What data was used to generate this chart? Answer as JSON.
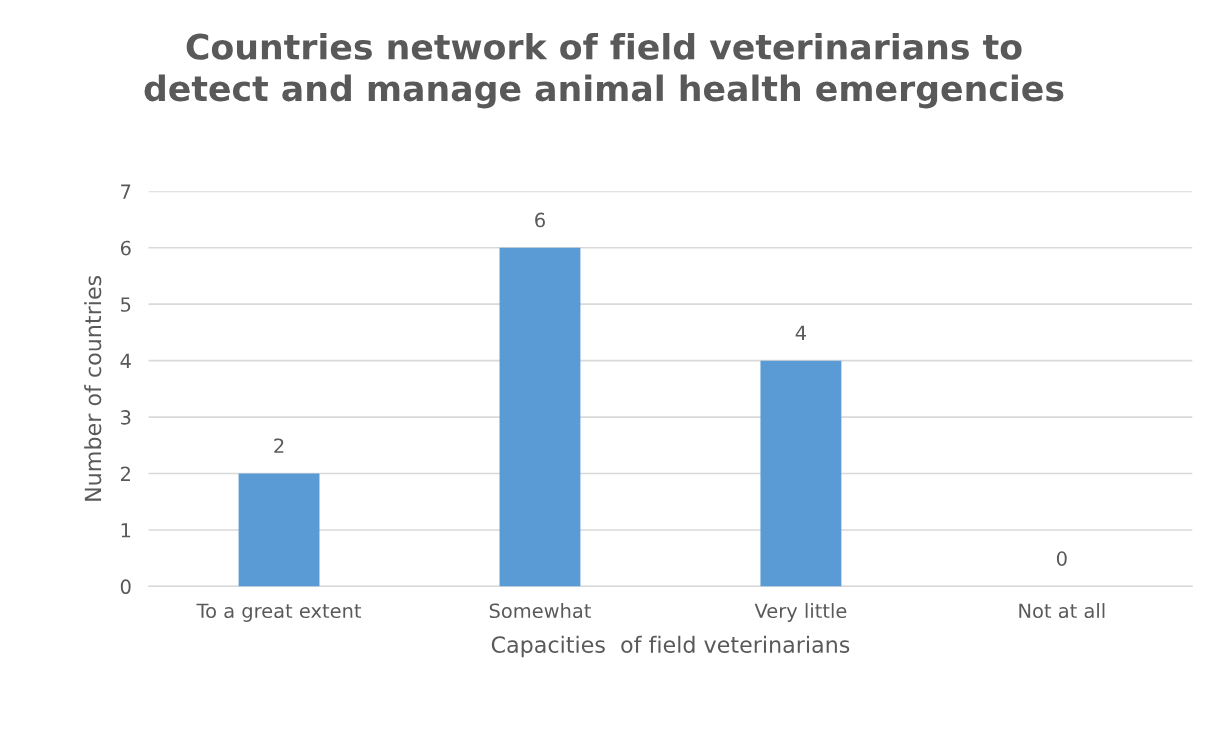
{
  "chart_data": {
    "type": "bar",
    "title": "Countries network of field veterinarians to\ndetect and manage animal health emergencies",
    "xlabel": "Capacities  of field veterinarians",
    "ylabel": "Number of countries",
    "categories": [
      "To a great extent",
      "Somewhat",
      "Very little",
      "Not at all"
    ],
    "values": [
      2,
      6,
      4,
      0
    ],
    "color": "#5b9bd5",
    "ylim": [
      0,
      7
    ],
    "yticks": [
      0,
      1,
      2,
      3,
      4,
      5,
      6,
      7
    ],
    "grid": "y",
    "data_labels": true
  }
}
